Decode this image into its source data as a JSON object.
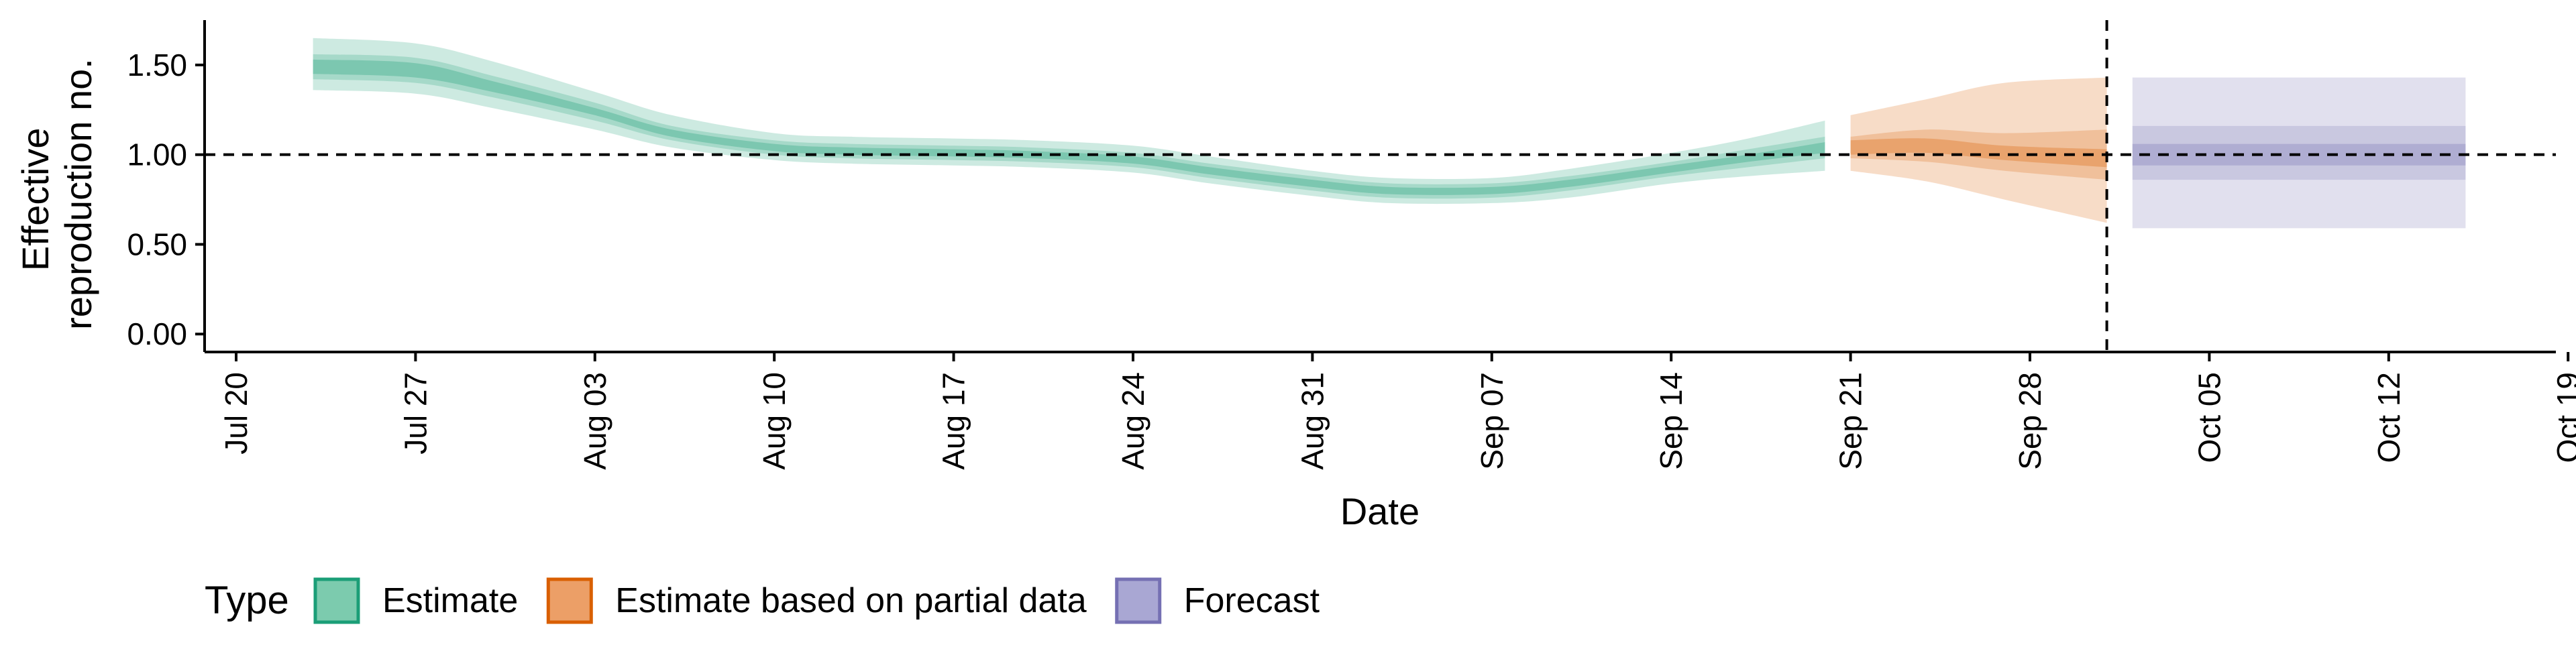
{
  "chart_data": {
    "type": "area",
    "xlabel": "Date",
    "ylabel_lines": [
      "Effective",
      "reproduction no."
    ],
    "x_ticks": [
      "Jul 20",
      "Jul 27",
      "Aug 03",
      "Aug 10",
      "Aug 17",
      "Aug 24",
      "Aug 31",
      "Sep 07",
      "Sep 14",
      "Sep 21",
      "Sep 28",
      "Oct 05",
      "Oct 12",
      "Oct 19"
    ],
    "y_ticks": [
      "0.00",
      "0.50",
      "1.00",
      "1.50"
    ],
    "ylim": [
      -0.1,
      1.75
    ],
    "x_range_days": [
      0,
      91
    ],
    "reference_line_y": 1.0,
    "vertical_line_day": 73,
    "grid": false,
    "legend": {
      "title": "Type",
      "position": "bottom-left",
      "items": [
        {
          "label": "Estimate",
          "fill": "#7ccbae",
          "stroke": "#1b9e77"
        },
        {
          "label": "Estimate based on partial data",
          "fill": "#ec9f67",
          "stroke": "#d95f02"
        },
        {
          "label": "Forecast",
          "fill": "#a9a7d3",
          "stroke": "#7570b3"
        }
      ]
    },
    "series": [
      {
        "name": "Estimate",
        "color": "#1b9e77",
        "x_day": [
          3,
          7,
          10,
          14,
          17,
          21,
          24,
          28,
          31,
          35,
          38,
          42,
          45,
          49,
          52,
          56,
          59,
          62
        ],
        "median": [
          1.49,
          1.47,
          1.38,
          1.24,
          1.12,
          1.04,
          1.02,
          1.01,
          1.0,
          0.97,
          0.91,
          0.84,
          0.8,
          0.8,
          0.84,
          0.92,
          0.98,
          1.04
        ],
        "ci20": [
          [
            1.45,
            1.53
          ],
          [
            1.43,
            1.51
          ],
          [
            1.35,
            1.41
          ],
          [
            1.22,
            1.26
          ],
          [
            1.1,
            1.14
          ],
          [
            1.02,
            1.06
          ],
          [
            1.0,
            1.04
          ],
          [
            0.99,
            1.03
          ],
          [
            0.98,
            1.02
          ],
          [
            0.95,
            0.99
          ],
          [
            0.89,
            0.93
          ],
          [
            0.82,
            0.86
          ],
          [
            0.78,
            0.82
          ],
          [
            0.78,
            0.82
          ],
          [
            0.82,
            0.86
          ],
          [
            0.9,
            0.94
          ],
          [
            0.96,
            1.0
          ],
          [
            1.01,
            1.07
          ]
        ],
        "ci50": [
          [
            1.42,
            1.56
          ],
          [
            1.4,
            1.54
          ],
          [
            1.32,
            1.44
          ],
          [
            1.19,
            1.29
          ],
          [
            1.08,
            1.16
          ],
          [
            1.0,
            1.08
          ],
          [
            0.98,
            1.06
          ],
          [
            0.97,
            1.05
          ],
          [
            0.96,
            1.04
          ],
          [
            0.93,
            1.01
          ],
          [
            0.87,
            0.95
          ],
          [
            0.8,
            0.88
          ],
          [
            0.76,
            0.84
          ],
          [
            0.76,
            0.84
          ],
          [
            0.8,
            0.88
          ],
          [
            0.88,
            0.96
          ],
          [
            0.93,
            1.03
          ],
          [
            0.98,
            1.1
          ]
        ],
        "ci90": [
          [
            1.36,
            1.65
          ],
          [
            1.34,
            1.62
          ],
          [
            1.26,
            1.52
          ],
          [
            1.14,
            1.35
          ],
          [
            1.04,
            1.22
          ],
          [
            0.97,
            1.12
          ],
          [
            0.95,
            1.1
          ],
          [
            0.94,
            1.09
          ],
          [
            0.93,
            1.08
          ],
          [
            0.9,
            1.05
          ],
          [
            0.84,
            0.99
          ],
          [
            0.77,
            0.91
          ],
          [
            0.73,
            0.87
          ],
          [
            0.73,
            0.87
          ],
          [
            0.76,
            0.92
          ],
          [
            0.84,
            1.01
          ],
          [
            0.88,
            1.09
          ],
          [
            0.91,
            1.19
          ]
        ]
      },
      {
        "name": "Estimate based on partial data",
        "color": "#d95f02",
        "x_day": [
          63,
          66,
          69,
          73
        ],
        "median": [
          1.04,
          1.05,
          1.01,
          0.98
        ],
        "ci20": [
          [
            1.0,
            1.08
          ],
          [
            1.01,
            1.09
          ],
          [
            0.97,
            1.05
          ],
          [
            0.93,
            1.03
          ]
        ],
        "ci50": [
          [
            0.98,
            1.1
          ],
          [
            0.96,
            1.14
          ],
          [
            0.91,
            1.12
          ],
          [
            0.86,
            1.14
          ]
        ],
        "ci90": [
          [
            0.91,
            1.22
          ],
          [
            0.85,
            1.31
          ],
          [
            0.75,
            1.4
          ],
          [
            0.62,
            1.43
          ]
        ]
      },
      {
        "name": "Forecast",
        "color": "#7570b3",
        "x_day": [
          74,
          87
        ],
        "median": [
          1.0,
          1.0
        ],
        "ci20": [
          [
            0.94,
            1.06
          ],
          [
            0.94,
            1.06
          ]
        ],
        "ci50": [
          [
            0.86,
            1.16
          ],
          [
            0.86,
            1.16
          ]
        ],
        "ci90": [
          [
            0.59,
            1.43
          ],
          [
            0.59,
            1.43
          ]
        ]
      }
    ]
  }
}
